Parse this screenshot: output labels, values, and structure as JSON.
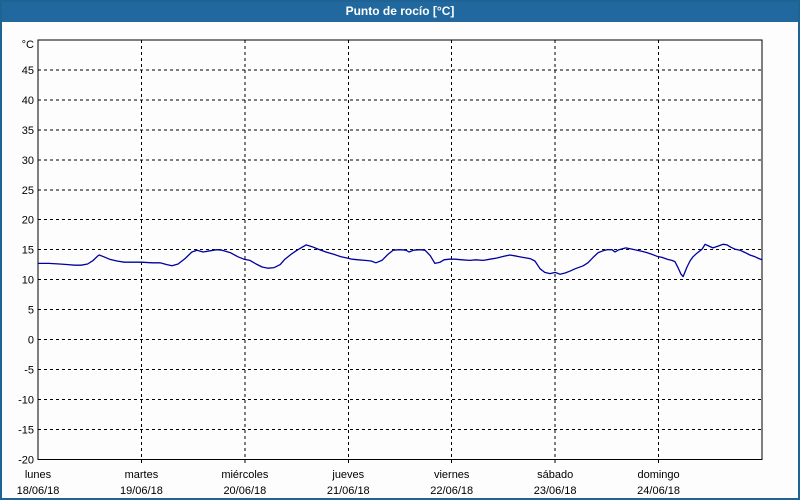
{
  "title_bar": {
    "title": "Punto de rocío [°C]",
    "bg_color": "#21689e",
    "text_color": "#ffffff"
  },
  "colors": {
    "page_border": "#1e6394",
    "plot_background": "#fdfdfd",
    "grid_color": "#000000",
    "axis_color": "#000000",
    "label_color": "#000000",
    "line_color": "#0000a0"
  },
  "chart_data": {
    "type": "line",
    "title": "Punto de rocío [°C]",
    "ylabel": "°C",
    "y_unit_label": "°C",
    "ylim": [
      -20,
      50
    ],
    "y_tick_step": 5,
    "y_tick_labels": [
      45,
      40,
      35,
      30,
      25,
      20,
      15,
      10,
      5,
      0,
      -5,
      -10,
      -15,
      -20
    ],
    "x_range_hours": [
      0,
      168
    ],
    "x_days": [
      {
        "name": "lunes",
        "date": "18/06/18"
      },
      {
        "name": "martes",
        "date": "19/06/18"
      },
      {
        "name": "miércoles",
        "date": "20/06/18"
      },
      {
        "name": "jueves",
        "date": "21/06/18"
      },
      {
        "name": "viernes",
        "date": "22/06/18"
      },
      {
        "name": "sábado",
        "date": "23/06/18"
      },
      {
        "name": "domingo",
        "date": "24/06/18"
      }
    ],
    "grid": true,
    "grid_style": "dashed",
    "legend_position": "none",
    "series": [
      {
        "name": "Punto de rocío",
        "color": "#0000a0",
        "x_unit": "hours_from_start",
        "points": [
          [
            0.0,
            12.7
          ],
          [
            2.5,
            12.7
          ],
          [
            5.0,
            12.6
          ],
          [
            7.0,
            12.5
          ],
          [
            8.5,
            12.4
          ],
          [
            10.0,
            12.4
          ],
          [
            11.5,
            12.6
          ],
          [
            12.8,
            13.2
          ],
          [
            13.8,
            13.9
          ],
          [
            14.2,
            14.1
          ],
          [
            15.3,
            13.8
          ],
          [
            16.6,
            13.4
          ],
          [
            18.3,
            13.1
          ],
          [
            20.0,
            12.9
          ],
          [
            22.0,
            12.9
          ],
          [
            24.0,
            12.9
          ],
          [
            26.5,
            12.8
          ],
          [
            28.3,
            12.8
          ],
          [
            29.9,
            12.5
          ],
          [
            31.1,
            12.3
          ],
          [
            32.5,
            12.6
          ],
          [
            34.1,
            13.5
          ],
          [
            35.7,
            14.6
          ],
          [
            36.9,
            14.9
          ],
          [
            38.3,
            14.6
          ],
          [
            39.9,
            14.8
          ],
          [
            41.5,
            15.0
          ],
          [
            42.7,
            14.9
          ],
          [
            44.6,
            14.5
          ],
          [
            46.4,
            13.8
          ],
          [
            47.8,
            13.4
          ],
          [
            49.2,
            13.2
          ],
          [
            50.6,
            12.6
          ],
          [
            52.0,
            12.1
          ],
          [
            53.4,
            11.9
          ],
          [
            54.8,
            12.0
          ],
          [
            56.2,
            12.5
          ],
          [
            57.3,
            13.4
          ],
          [
            58.7,
            14.2
          ],
          [
            59.9,
            14.8
          ],
          [
            61.0,
            15.3
          ],
          [
            62.2,
            15.8
          ],
          [
            63.6,
            15.5
          ],
          [
            65.0,
            15.1
          ],
          [
            66.8,
            14.6
          ],
          [
            68.7,
            14.2
          ],
          [
            70.3,
            13.8
          ],
          [
            71.7,
            13.6
          ],
          [
            72.9,
            13.4
          ],
          [
            74.3,
            13.3
          ],
          [
            75.9,
            13.2
          ],
          [
            77.3,
            13.1
          ],
          [
            78.4,
            12.8
          ],
          [
            79.8,
            13.2
          ],
          [
            81.2,
            14.2
          ],
          [
            82.4,
            14.9
          ],
          [
            84.0,
            15.0
          ],
          [
            85.4,
            14.9
          ],
          [
            86.1,
            14.6
          ],
          [
            87.2,
            14.9
          ],
          [
            88.6,
            15.0
          ],
          [
            89.8,
            14.9
          ],
          [
            91.0,
            14.0
          ],
          [
            92.1,
            12.7
          ],
          [
            93.3,
            12.9
          ],
          [
            94.2,
            13.3
          ],
          [
            95.4,
            13.4
          ],
          [
            96.8,
            13.4
          ],
          [
            98.4,
            13.3
          ],
          [
            100.2,
            13.2
          ],
          [
            101.6,
            13.3
          ],
          [
            103.3,
            13.2
          ],
          [
            104.9,
            13.4
          ],
          [
            106.5,
            13.6
          ],
          [
            108.1,
            13.9
          ],
          [
            109.5,
            14.1
          ],
          [
            111.1,
            13.9
          ],
          [
            112.5,
            13.7
          ],
          [
            114.2,
            13.5
          ],
          [
            115.3,
            13.1
          ],
          [
            116.5,
            11.8
          ],
          [
            117.6,
            11.2
          ],
          [
            118.8,
            11.0
          ],
          [
            120.0,
            11.2
          ],
          [
            121.1,
            10.9
          ],
          [
            122.3,
            11.1
          ],
          [
            123.4,
            11.4
          ],
          [
            124.6,
            11.8
          ],
          [
            126.5,
            12.3
          ],
          [
            127.6,
            12.8
          ],
          [
            128.8,
            13.7
          ],
          [
            130.0,
            14.5
          ],
          [
            131.1,
            14.8
          ],
          [
            132.0,
            15.0
          ],
          [
            133.2,
            15.0
          ],
          [
            133.9,
            14.6
          ],
          [
            134.8,
            15.0
          ],
          [
            136.4,
            15.3
          ],
          [
            137.8,
            15.1
          ],
          [
            139.0,
            14.9
          ],
          [
            140.2,
            14.7
          ],
          [
            141.3,
            14.5
          ],
          [
            142.5,
            14.2
          ],
          [
            143.6,
            13.9
          ],
          [
            144.8,
            13.7
          ],
          [
            146.0,
            13.4
          ],
          [
            147.1,
            13.2
          ],
          [
            147.8,
            13.0
          ],
          [
            148.5,
            12.0
          ],
          [
            149.2,
            10.9
          ],
          [
            149.7,
            10.5
          ],
          [
            150.6,
            12.1
          ],
          [
            151.3,
            13.1
          ],
          [
            152.0,
            13.8
          ],
          [
            152.9,
            14.4
          ],
          [
            154.1,
            15.1
          ],
          [
            154.8,
            15.9
          ],
          [
            155.7,
            15.6
          ],
          [
            156.6,
            15.3
          ],
          [
            157.8,
            15.6
          ],
          [
            159.0,
            15.9
          ],
          [
            159.9,
            15.8
          ],
          [
            160.8,
            15.4
          ],
          [
            161.7,
            15.1
          ],
          [
            162.9,
            14.9
          ],
          [
            164.1,
            14.5
          ],
          [
            165.2,
            14.1
          ],
          [
            166.4,
            13.8
          ],
          [
            167.3,
            13.5
          ],
          [
            168.0,
            13.3
          ]
        ]
      }
    ]
  }
}
